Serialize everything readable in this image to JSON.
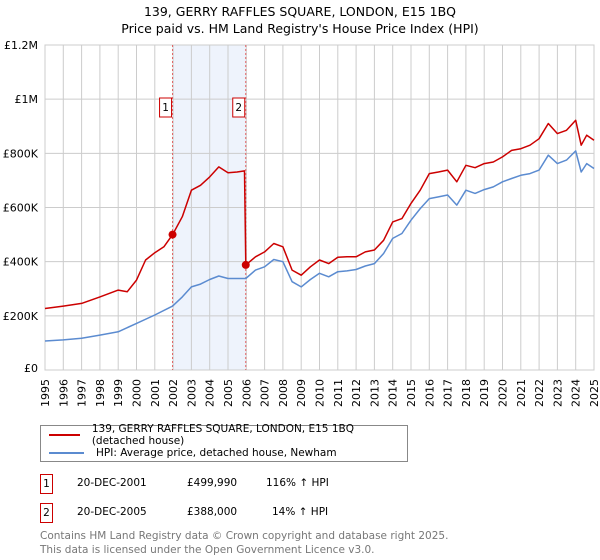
{
  "title": "139, GERRY RAFFLES SQUARE, LONDON, E15 1BQ",
  "subtitle": "Price paid vs. HM Land Registry's House Price Index (HPI)",
  "chart_data": {
    "type": "line",
    "title": "139, GERRY RAFFLES SQUARE, LONDON, E15 1BQ — Price paid vs. HM Land Registry's House Price Index (HPI)",
    "xlim": [
      1995,
      2025
    ],
    "ylim": [
      0,
      1200000
    ],
    "x_ticks": [
      "1995",
      "1996",
      "1997",
      "1998",
      "1999",
      "2000",
      "2001",
      "2002",
      "2003",
      "2004",
      "2005",
      "2006",
      "2007",
      "2008",
      "2009",
      "2010",
      "2011",
      "2012",
      "2013",
      "2014",
      "2015",
      "2016",
      "2017",
      "2018",
      "2019",
      "2020",
      "2021",
      "2022",
      "2023",
      "2024",
      "2025"
    ],
    "y_ticks": [
      {
        "v": 0,
        "label": "£0"
      },
      {
        "v": 200000,
        "label": "£200K"
      },
      {
        "v": 400000,
        "label": "£400K"
      },
      {
        "v": 600000,
        "label": "£600K"
      },
      {
        "v": 800000,
        "label": "£800K"
      },
      {
        "v": 1000000,
        "label": "£1M"
      },
      {
        "v": 1200000,
        "label": "£1.2M"
      }
    ],
    "grid": true,
    "colors": {
      "property": "#cc0000",
      "hpi": "#5b8bd0",
      "shade": "#eef3fc"
    },
    "series": [
      {
        "name": "139, GERRY RAFFLES SQUARE, LONDON, E15 1BQ (detached house)",
        "color": "#cc0000",
        "x": [
          1995,
          1996,
          1997,
          1998,
          1999,
          1999.5,
          2000,
          2000.5,
          2001,
          2001.5,
          2001.97,
          2002.5,
          2003,
          2003.5,
          2004,
          2004.5,
          2005,
          2005.5,
          2005.9,
          2005.97,
          2006.5,
          2007,
          2007.5,
          2008,
          2008.5,
          2009,
          2009.5,
          2010,
          2010.5,
          2011,
          2011.5,
          2012,
          2012.5,
          2013,
          2013.5,
          2014,
          2014.5,
          2015,
          2015.5,
          2016,
          2016.5,
          2017,
          2017.5,
          2018,
          2018.5,
          2019,
          2019.5,
          2020,
          2020.5,
          2021,
          2021.5,
          2022,
          2022.5,
          2023,
          2023.5,
          2024,
          2024.3,
          2024.6,
          2025
        ],
        "y": [
          227000,
          236000,
          246000,
          270000,
          295000,
          289000,
          332000,
          406000,
          433000,
          455000,
          499990,
          566000,
          664000,
          682000,
          713000,
          750000,
          728000,
          731000,
          735000,
          388000,
          418000,
          436000,
          467000,
          455000,
          369000,
          350000,
          381000,
          406000,
          393000,
          416000,
          418000,
          418000,
          436000,
          443000,
          479000,
          547000,
          559000,
          615000,
          664000,
          725000,
          731000,
          738000,
          695000,
          756000,
          747000,
          762000,
          768000,
          787000,
          811000,
          817000,
          830000,
          854000,
          910000,
          873000,
          885000,
          922000,
          830000,
          867000,
          848000
        ]
      },
      {
        "name": "HPI: Average price, detached house, Newham",
        "color": "#5b8bd0",
        "x": [
          1995,
          1996,
          1997,
          1998,
          1999,
          2000,
          2001,
          2001.97,
          2002.5,
          2003,
          2003.5,
          2004,
          2004.5,
          2005,
          2005.97,
          2006.5,
          2007,
          2007.5,
          2008,
          2008.5,
          2009,
          2009.5,
          2010,
          2010.5,
          2011,
          2011.5,
          2012,
          2012.5,
          2013,
          2013.5,
          2014,
          2014.5,
          2015,
          2015.5,
          2016,
          2016.5,
          2017,
          2017.5,
          2018,
          2018.5,
          2019,
          2019.5,
          2020,
          2020.5,
          2021,
          2021.5,
          2022,
          2022.5,
          2023,
          2023.5,
          2024,
          2024.3,
          2024.6,
          2025
        ],
        "y": [
          107000,
          111000,
          117000,
          129000,
          141000,
          172000,
          203000,
          236000,
          270000,
          307000,
          317000,
          334000,
          347000,
          338000,
          338000,
          369000,
          381000,
          408000,
          400000,
          326000,
          307000,
          334000,
          357000,
          344000,
          363000,
          366000,
          371000,
          384000,
          393000,
          430000,
          486000,
          504000,
          553000,
          596000,
          633000,
          639000,
          646000,
          609000,
          664000,
          652000,
          666000,
          676000,
          695000,
          707000,
          719000,
          725000,
          738000,
          793000,
          762000,
          775000,
          809000,
          731000,
          762000,
          744000
        ]
      }
    ],
    "annotations": [
      {
        "label": "1",
        "x": 2001.97,
        "y": 499990
      },
      {
        "label": "2",
        "x": 2005.97,
        "y": 388000
      }
    ]
  },
  "legend": {
    "property": "139, GERRY RAFFLES SQUARE, LONDON, E15 1BQ (detached house)",
    "hpi": "HPI: Average price, detached house, Newham"
  },
  "sales": [
    {
      "num": "1",
      "date": "20-DEC-2001",
      "price": "£499,990",
      "hpi": "116% ↑ HPI"
    },
    {
      "num": "2",
      "date": "20-DEC-2005",
      "price": "£388,000",
      "hpi": "14% ↑ HPI"
    }
  ],
  "footer": [
    "Contains HM Land Registry data © Crown copyright and database right 2025.",
    "This data is licensed under the Open Government Licence v3.0."
  ]
}
